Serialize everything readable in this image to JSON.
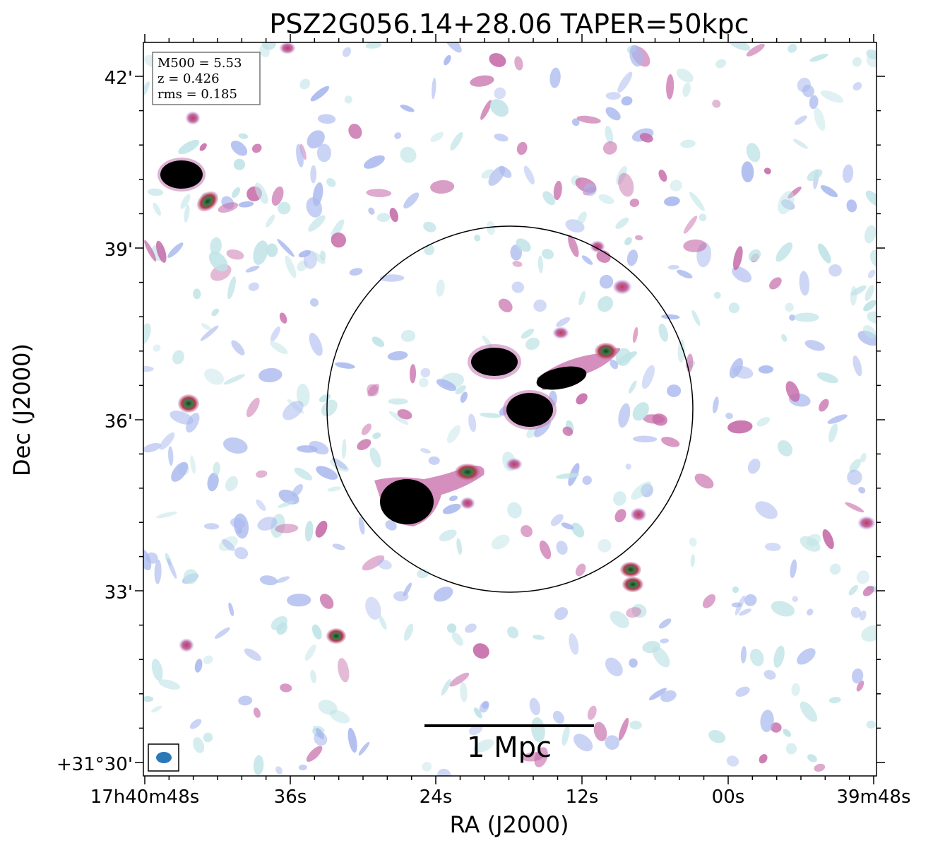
{
  "title": "PSZ2G056.14+28.06 TAPER=50kpc",
  "xlabel": "RA (J2000)",
  "ylabel": "Dec (J2000)",
  "info_box": {
    "lines": [
      "M500 = 5.53",
      "z = 0.426",
      "rms = 0.185"
    ]
  },
  "scale_bar": {
    "label": "1 Mpc"
  },
  "x_ticks": [
    "17h40m48s",
    "36s",
    "24s",
    "12s",
    "00s",
    "39m48s"
  ],
  "y_ticks": [
    "42'",
    "39'",
    "36'",
    "33'",
    "+31°30'"
  ],
  "colors": {
    "frame": "#000000",
    "beam": "#2a78b8",
    "noise_light": "#bfe3e6",
    "noise_blue": "#a9b8ee",
    "noise_pink": "#c56aa8",
    "source_core": "#000000",
    "source_green": "#3c7a48",
    "source_red": "#b33a4a"
  }
}
